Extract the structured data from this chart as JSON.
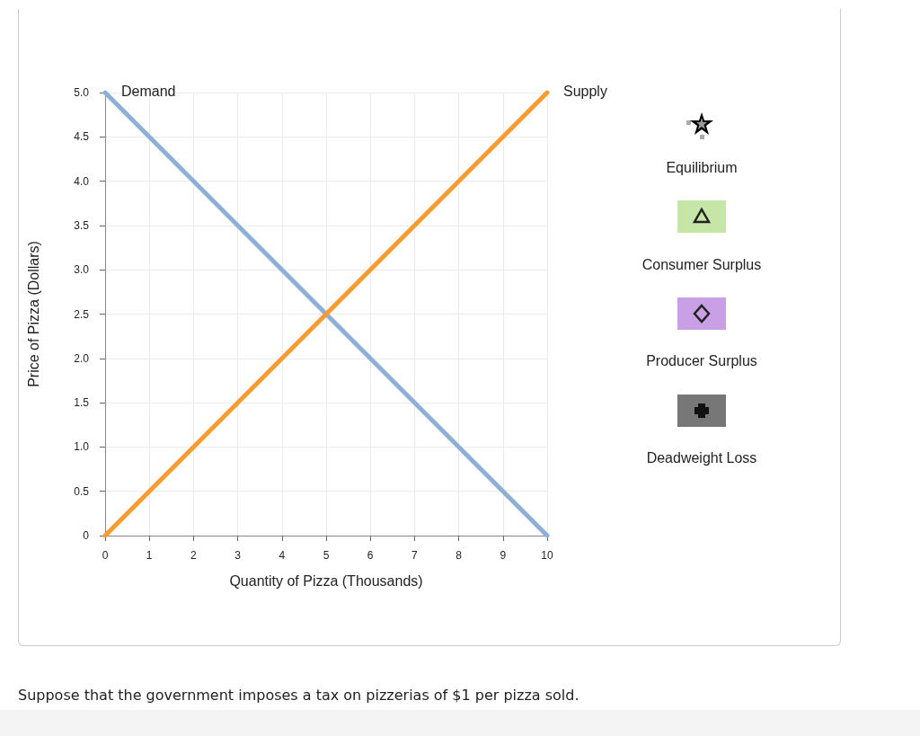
{
  "chart_data": {
    "type": "line",
    "xlabel": "Quantity of Pizza (Thousands)",
    "ylabel": "Price of Pizza (Dollars)",
    "x": [
      0,
      10
    ],
    "series": [
      {
        "name": "Demand",
        "color": "#8eafd6",
        "values": [
          5,
          0
        ]
      },
      {
        "name": "Supply",
        "color": "#f89c32",
        "values": [
          0,
          5
        ]
      }
    ],
    "xlim": [
      0,
      10
    ],
    "xticks": [
      0,
      1,
      2,
      3,
      4,
      5,
      6,
      7,
      8,
      9,
      10
    ],
    "ylim": [
      0,
      5
    ],
    "yticks": [
      0,
      {
        "value": 0.5,
        "label": "0.5"
      },
      {
        "value": 1,
        "label": "1.0"
      },
      {
        "value": 1.5,
        "label": "1.5"
      },
      {
        "value": 2,
        "label": "2.0"
      },
      {
        "value": 2.5,
        "label": "2.5"
      },
      {
        "value": 3,
        "label": "3.0"
      },
      {
        "value": 3.5,
        "label": "3.5"
      },
      {
        "value": 4,
        "label": "4.0"
      },
      {
        "value": 4.5,
        "label": "4.5"
      },
      {
        "value": 5,
        "label": "5.0"
      }
    ],
    "grid": true,
    "legend": false,
    "marker": "none",
    "line_style": "solid",
    "annotations": [
      "Equilibrium",
      "Consumer Surplus",
      "Producer Surplus",
      "Deadweight Loss",
      "Suppose that the government imposes a tax on pizzerias of $1 per pizza sold."
    ]
  }
}
